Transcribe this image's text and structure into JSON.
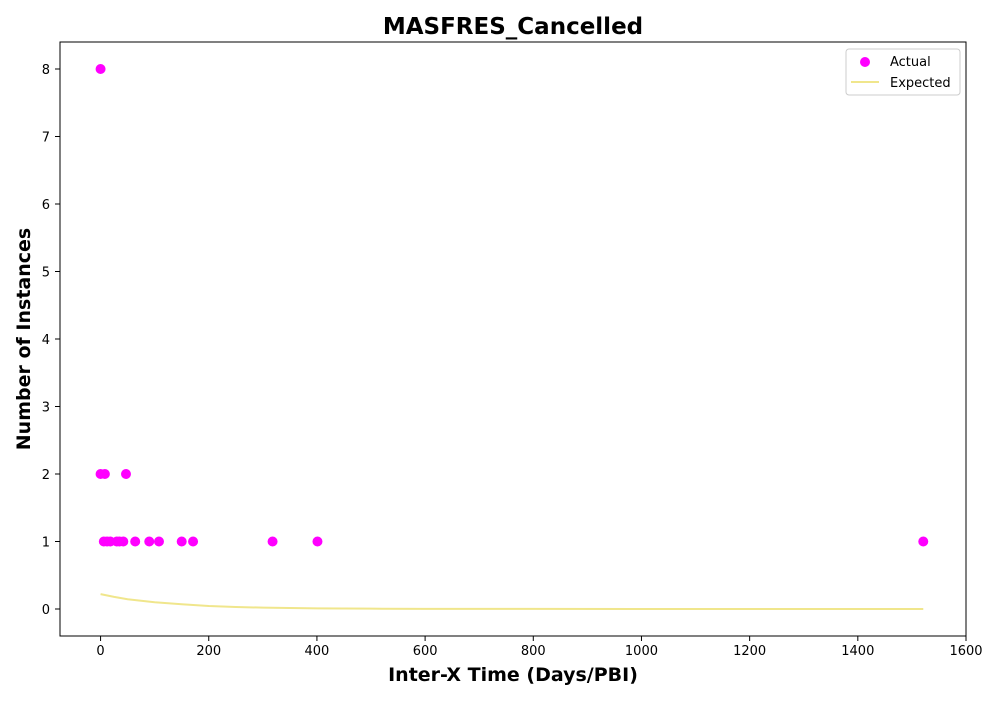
{
  "chart_data": {
    "type": "scatter",
    "title": "MASFRES_Cancelled",
    "xlabel": "Inter-X Time (Days/PBI)",
    "ylabel": "Number of Instances",
    "xlim": [
      -75,
      1600
    ],
    "ylim": [
      -0.4,
      8.4
    ],
    "x_ticks": [
      0,
      200,
      400,
      600,
      800,
      1000,
      1200,
      1400,
      1600
    ],
    "y_ticks": [
      0,
      1,
      2,
      3,
      4,
      5,
      6,
      7,
      8
    ],
    "grid": false,
    "legend": "top-right",
    "series": [
      {
        "name": "Actual",
        "kind": "scatter",
        "color": "#ff00ff",
        "points": [
          [
            0,
            8
          ],
          [
            0,
            2
          ],
          [
            8,
            2
          ],
          [
            6,
            1
          ],
          [
            12,
            1
          ],
          [
            18,
            1
          ],
          [
            30,
            1
          ],
          [
            35,
            1
          ],
          [
            42,
            1
          ],
          [
            47,
            2
          ],
          [
            64,
            1
          ],
          [
            90,
            1
          ],
          [
            108,
            1
          ],
          [
            150,
            1
          ],
          [
            171,
            1
          ],
          [
            318,
            1
          ],
          [
            401,
            1
          ],
          [
            1521,
            1
          ]
        ]
      },
      {
        "name": "Expected",
        "kind": "line",
        "color": "#f0e68c",
        "points": [
          [
            0,
            0.22
          ],
          [
            25,
            0.18
          ],
          [
            50,
            0.145
          ],
          [
            100,
            0.1
          ],
          [
            150,
            0.07
          ],
          [
            200,
            0.045
          ],
          [
            250,
            0.03
          ],
          [
            300,
            0.02
          ],
          [
            400,
            0.01
          ],
          [
            500,
            0.005
          ],
          [
            600,
            0.002
          ],
          [
            800,
            0.001
          ],
          [
            1000,
            0.0
          ],
          [
            1200,
            0.0
          ],
          [
            1400,
            0.0
          ],
          [
            1521,
            0.0
          ]
        ]
      }
    ]
  }
}
